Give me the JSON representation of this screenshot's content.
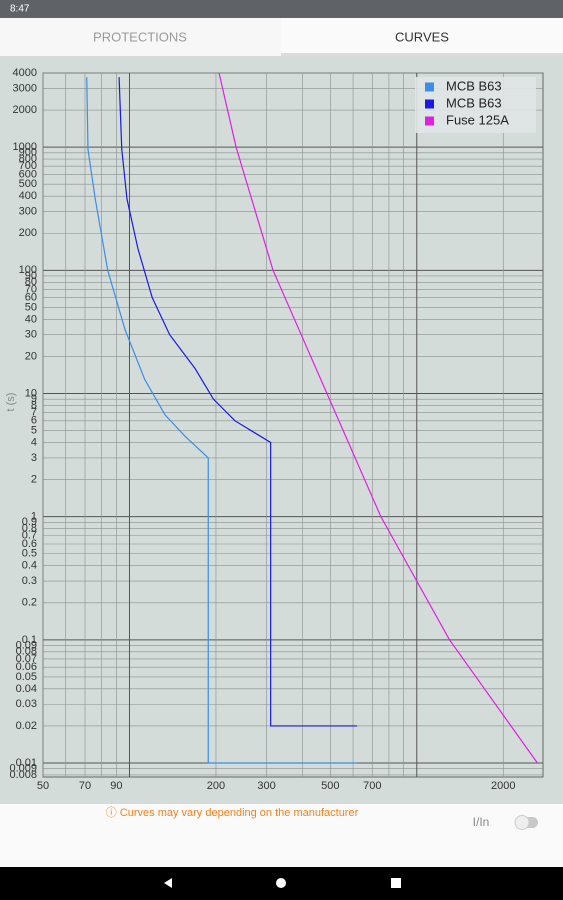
{
  "status_bar": {
    "time": "8:47"
  },
  "tabs": [
    "PROTECTIONS",
    "CURVES"
  ],
  "chart_data": {
    "type": "line",
    "y_label": "t (s)",
    "xscale": "log",
    "yscale": "log",
    "grid": true,
    "legend": "upper right",
    "xlim": [
      50,
      2750
    ],
    "ylim": [
      0.0077,
      4000
    ],
    "xticks": [
      50,
      70,
      90,
      200,
      300,
      500,
      700,
      2000
    ],
    "x_minor_grid": [
      60,
      80,
      100,
      400,
      600,
      800,
      900,
      1000
    ],
    "yticks": [
      4000,
      3000,
      2000,
      1000,
      900,
      800,
      700,
      600,
      500,
      400,
      300,
      200,
      100,
      90,
      80,
      70,
      60,
      50,
      40,
      30,
      20,
      10,
      9,
      8,
      7,
      6,
      5,
      4,
      3,
      2,
      1,
      0.9,
      0.8,
      0.7,
      0.6,
      0.5,
      0.4,
      0.3,
      0.2,
      0.1,
      0.09,
      0.08,
      0.07,
      0.06,
      0.05,
      0.04,
      0.03,
      0.02,
      0.01,
      0.009,
      0.008
    ],
    "series": [
      {
        "name": "MCB B63",
        "color": "#3a8ee6",
        "x": [
          71,
          71.7,
          76,
          84,
          96.5,
          113,
          133,
          156,
          188,
          188,
          620
        ],
        "values": [
          3700,
          960,
          380,
          100,
          33,
          13,
          6.7,
          4.5,
          3,
          0.01,
          0.01
        ]
      },
      {
        "name": "MCB B63",
        "color": "#1a1ae0",
        "x": [
          92,
          94,
          98,
          107,
          120,
          138,
          169,
          196,
          233,
          310,
          310,
          620
        ],
        "values": [
          3700,
          960,
          380,
          150,
          60,
          30,
          16,
          9,
          6,
          4,
          0.02,
          0.02
        ]
      },
      {
        "name": "Fuse 125A",
        "color": "#e020e0",
        "x": [
          205,
          235,
          316,
          750,
          1300,
          2630
        ],
        "values": [
          4000,
          1000,
          100,
          1,
          0.1,
          0.01
        ]
      }
    ]
  },
  "footer": {
    "note": "ⓘ Curves may vary depending on the manufacturer",
    "toggle_label": "I/In"
  }
}
